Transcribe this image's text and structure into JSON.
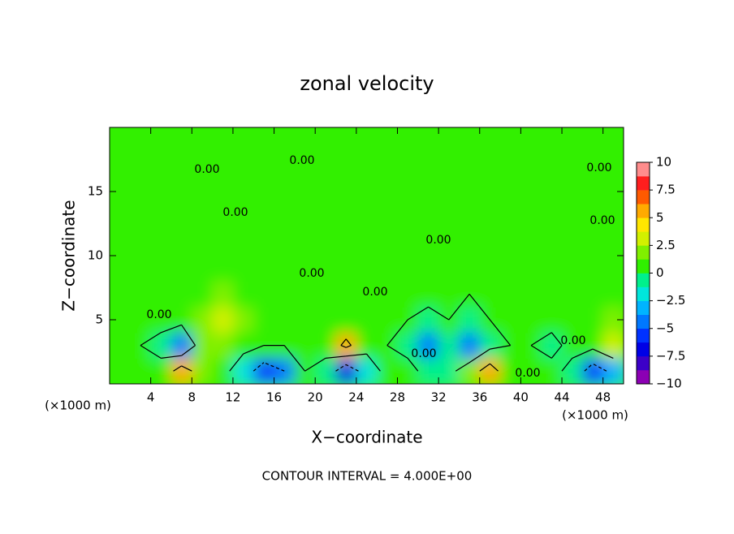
{
  "chart_data": {
    "type": "contour",
    "title": "zonal velocity",
    "xlabel": "X−coordinate",
    "ylabel": "Z−coordinate",
    "x_unit_label": "(×1000 m)",
    "x_unit_label_right": "(×1000 m)",
    "footer": "CONTOUR INTERVAL = 4.000E+00",
    "xlim": [
      0,
      50
    ],
    "ylim": [
      0,
      20
    ],
    "xticks": [
      4,
      8,
      12,
      16,
      20,
      24,
      28,
      32,
      36,
      40,
      44,
      48
    ],
    "yticks": [
      5,
      10,
      15
    ],
    "x": [
      1,
      3,
      5,
      7,
      9,
      11,
      13,
      15,
      17,
      19,
      21,
      23,
      25,
      27,
      29,
      31,
      33,
      35,
      37,
      39,
      41,
      43,
      45,
      47,
      49
    ],
    "z": [
      1,
      3,
      5,
      7,
      9,
      11,
      13,
      15,
      17,
      19
    ],
    "values": [
      [
        1,
        0,
        1,
        6,
        2,
        1,
        -2,
        -6,
        -4,
        0,
        -1,
        -7,
        -2,
        1,
        1,
        -1,
        -1,
        2,
        6,
        1,
        0,
        1,
        -1,
        -6,
        -3
      ],
      [
        1,
        0,
        -1,
        -4,
        2,
        2,
        1,
        0,
        0,
        1,
        1,
        5,
        1,
        0,
        -1,
        -4,
        -1,
        -4,
        -1,
        0,
        0,
        -1,
        1,
        1,
        3
      ],
      [
        0,
        1,
        1,
        1,
        2,
        3,
        2,
        1,
        1,
        1,
        1,
        1,
        1,
        1,
        0,
        -1,
        0,
        -1,
        0,
        1,
        1,
        1,
        0,
        1,
        2
      ],
      [
        0,
        0,
        1,
        1,
        1,
        2,
        1,
        1,
        1,
        1,
        0,
        0,
        1,
        0,
        1,
        1,
        1,
        0,
        0,
        1,
        1,
        1,
        0,
        0,
        1
      ],
      [
        0,
        0,
        0,
        1,
        1,
        1,
        1,
        1,
        0,
        1,
        0,
        0,
        0,
        0,
        1,
        1,
        0,
        1,
        0,
        0,
        1,
        0,
        0,
        1,
        0
      ],
      [
        0,
        1,
        0,
        1,
        1,
        0,
        1,
        1,
        0,
        0,
        1,
        1,
        0,
        0,
        1,
        1,
        1,
        0,
        0,
        1,
        1,
        0,
        0,
        1,
        1
      ],
      [
        1,
        1,
        0,
        0,
        0,
        1,
        1,
        0,
        0,
        1,
        1,
        0,
        1,
        1,
        1,
        0,
        0,
        1,
        1,
        1,
        0,
        0,
        1,
        1,
        1
      ],
      [
        1,
        1,
        1,
        0,
        0,
        1,
        1,
        1,
        1,
        0,
        0,
        1,
        1,
        1,
        1,
        1,
        1,
        1,
        1,
        0,
        0,
        1,
        1,
        1,
        1
      ],
      [
        0,
        0,
        1,
        1,
        1,
        0,
        0,
        0,
        1,
        1,
        1,
        0,
        0,
        1,
        1,
        1,
        1,
        1,
        0,
        0,
        0,
        1,
        1,
        0,
        0
      ],
      [
        1,
        1,
        1,
        1,
        1,
        1,
        1,
        1,
        0,
        0,
        1,
        1,
        1,
        1,
        1,
        1,
        0,
        0,
        1,
        1,
        1,
        1,
        1,
        1,
        1
      ]
    ],
    "contour_levels": [
      -4,
      0,
      4
    ],
    "contour_labels": [
      "0.00",
      "0.00",
      "0.00",
      "0.00",
      "0.00",
      "0.00",
      "0.00",
      "0.00",
      "0.00",
      "0.00",
      "0.00",
      "0.00"
    ],
    "colorbar_lim": [
      -10,
      10
    ],
    "colorbar_ticks": [
      {
        "value": -10,
        "label": "−10"
      },
      {
        "value": -7.5,
        "label": "−7.5"
      },
      {
        "value": -5,
        "label": "−5"
      },
      {
        "value": -2.5,
        "label": "−2.5"
      },
      0,
      2.5,
      5,
      7.5,
      10
    ],
    "colors": [
      "#8c00b4",
      "#3c00c8",
      "#0000e6",
      "#0032ff",
      "#0078ff",
      "#00b4ff",
      "#00e6dc",
      "#00f08c",
      "#30f000",
      "#80f000",
      "#d2f000",
      "#ffe600",
      "#ffaa00",
      "#ff5a00",
      "#ff1e1e",
      "#ff8c8c"
    ]
  }
}
